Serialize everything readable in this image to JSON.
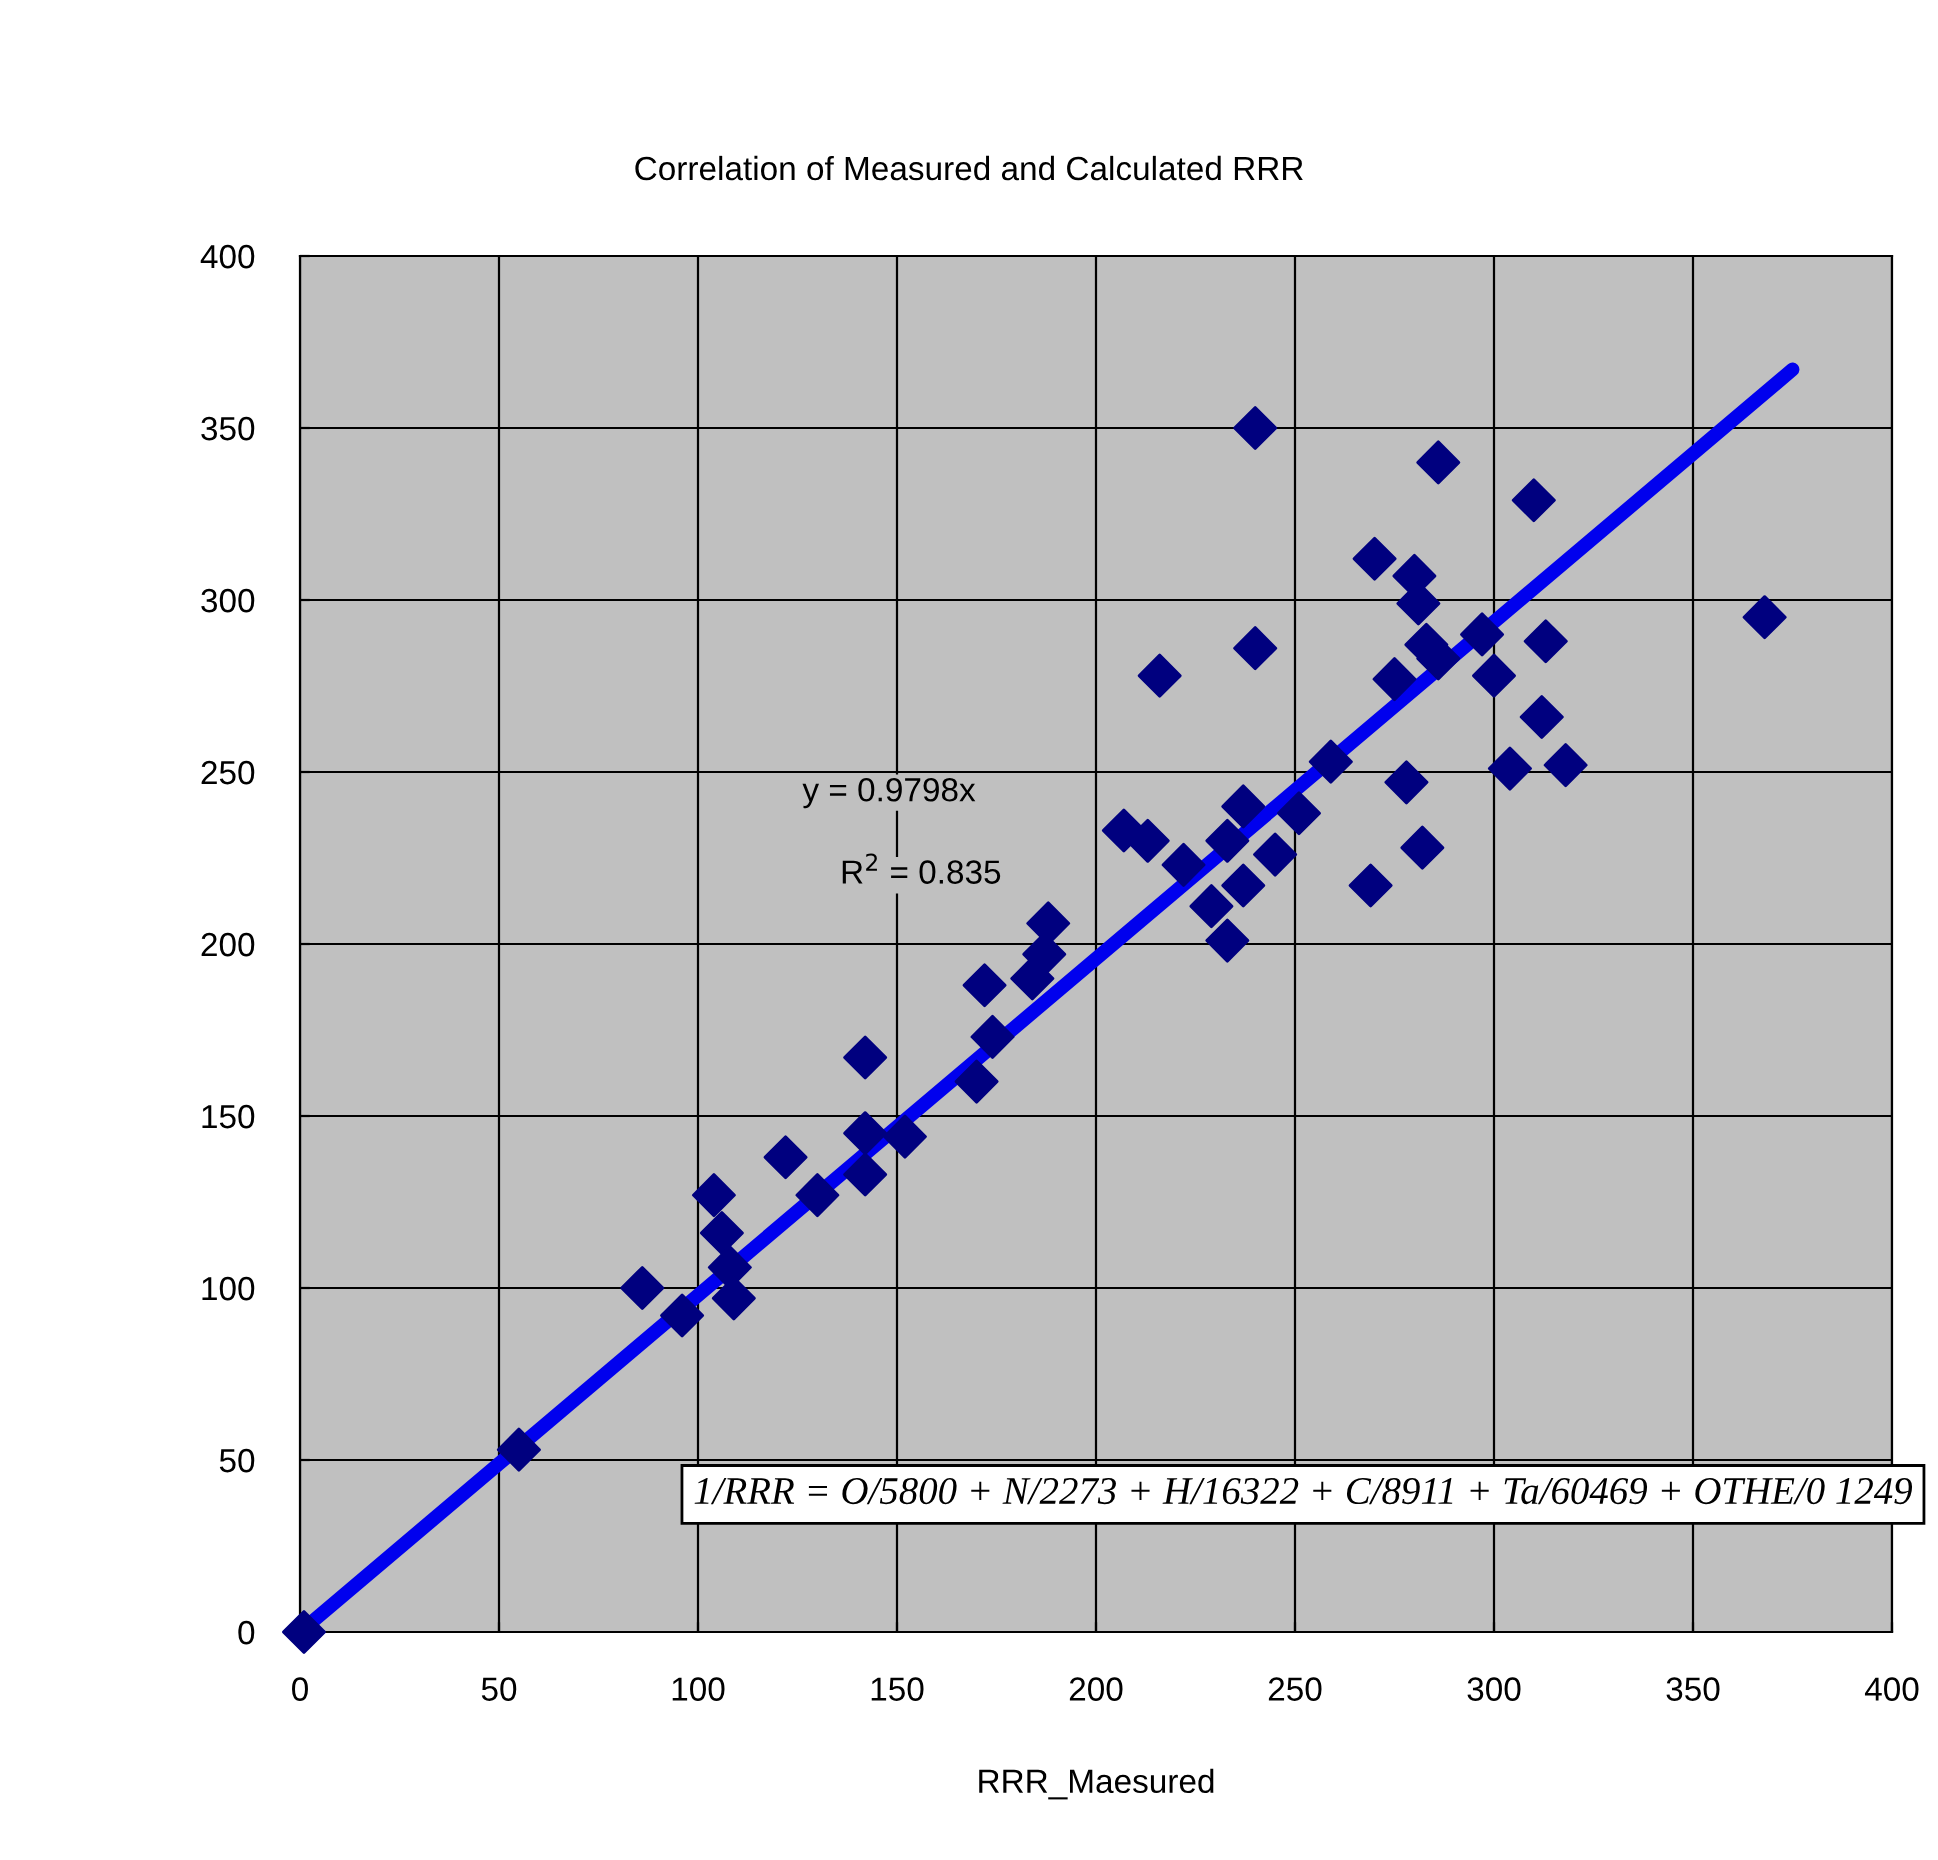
{
  "chart_data": {
    "type": "scatter",
    "title": "Correlation of Measured and Calculated RRR",
    "xlabel": "RRR_Maesured",
    "xlim": [
      0,
      400
    ],
    "xticks": [
      0,
      50,
      100,
      150,
      200,
      250,
      300,
      350,
      400
    ],
    "ylim": [
      0,
      400
    ],
    "yticks": [
      0,
      50,
      100,
      150,
      200,
      250,
      300,
      350,
      400
    ],
    "grid": true,
    "legend": false,
    "series": [
      {
        "marker": "diamond",
        "color": "#00007f",
        "x": [
          1,
          55,
          86,
          96,
          104,
          106,
          108,
          109,
          122,
          130,
          142,
          142,
          142,
          152,
          170,
          172,
          174,
          184,
          187,
          188,
          240,
          286,
          310,
          270,
          280,
          281,
          283,
          286,
          297,
          313,
          300,
          368,
          216,
          240,
          275,
          312,
          304,
          318,
          259,
          278,
          251,
          237,
          207,
          213,
          233,
          222,
          245,
          237,
          282,
          269,
          229,
          233
        ],
        "values": [
          0,
          53,
          100,
          92,
          127,
          116,
          106,
          97,
          138,
          127,
          167,
          145,
          133,
          144,
          160,
          188,
          173,
          190,
          197,
          206,
          350,
          340,
          329,
          312,
          307,
          299,
          287,
          283,
          290,
          288,
          278,
          295,
          278,
          286,
          277,
          266,
          251,
          252,
          253,
          247,
          238,
          240,
          233,
          230,
          230,
          223,
          226,
          217,
          228,
          217,
          211,
          201
        ]
      },
      {
        "type": "line",
        "marker": "none",
        "color": "#0000ee",
        "x": [
          0,
          375
        ],
        "values": [
          0,
          367
        ]
      }
    ],
    "annotations": [
      "y = 0.9798x",
      "R$^{2}$ = 0.835",
      "1/RRR = O/5800 + N/2273 + H/16322 + C/8911 + Ta/60469 + OTHE/0 1249"
    ]
  }
}
